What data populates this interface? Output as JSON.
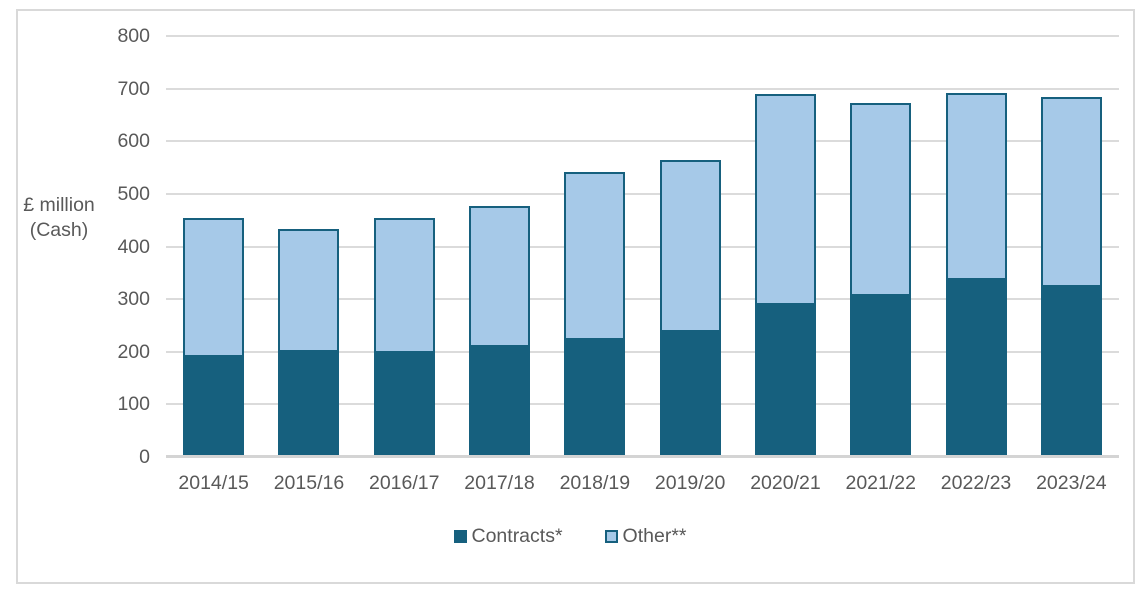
{
  "chart_data": {
    "type": "bar",
    "stacked": true,
    "title": "",
    "categories": [
      "2014/15",
      "2015/16",
      "2016/17",
      "2017/18",
      "2018/19",
      "2019/20",
      "2020/21",
      "2021/22",
      "2022/23",
      "2023/24"
    ],
    "series": [
      {
        "name": "Contracts*",
        "color": "#16607E",
        "border_color": "#16607E",
        "values": [
          194,
          203,
          201,
          212,
          225,
          240,
          293,
          309,
          341,
          327
        ]
      },
      {
        "name": "Other**",
        "color": "#A6C9E8",
        "border_color": "#16607E",
        "values": [
          260,
          230,
          253,
          265,
          317,
          325,
          397,
          364,
          350,
          357
        ]
      }
    ],
    "stack_totals": [
      454,
      433,
      454,
      477,
      542,
      565,
      690,
      673,
      691,
      684
    ],
    "ylabel": "£ million (Cash)",
    "ylabel_lines": [
      "£ million",
      "(Cash)"
    ],
    "xlabel": "",
    "ylim": [
      0,
      800
    ],
    "yticks": [
      0,
      100,
      200,
      300,
      400,
      500,
      600,
      700,
      800
    ],
    "grid": true,
    "legend_position": "bottom-center"
  },
  "colors": {
    "text": "#595959",
    "gridline": "#DBDBDB",
    "axis_line": "#D4D4D4",
    "frame_border": "#D9D9D9",
    "background": "#FFFFFF",
    "dark_series": "#16607E",
    "light_series": "#A6C9E8"
  }
}
